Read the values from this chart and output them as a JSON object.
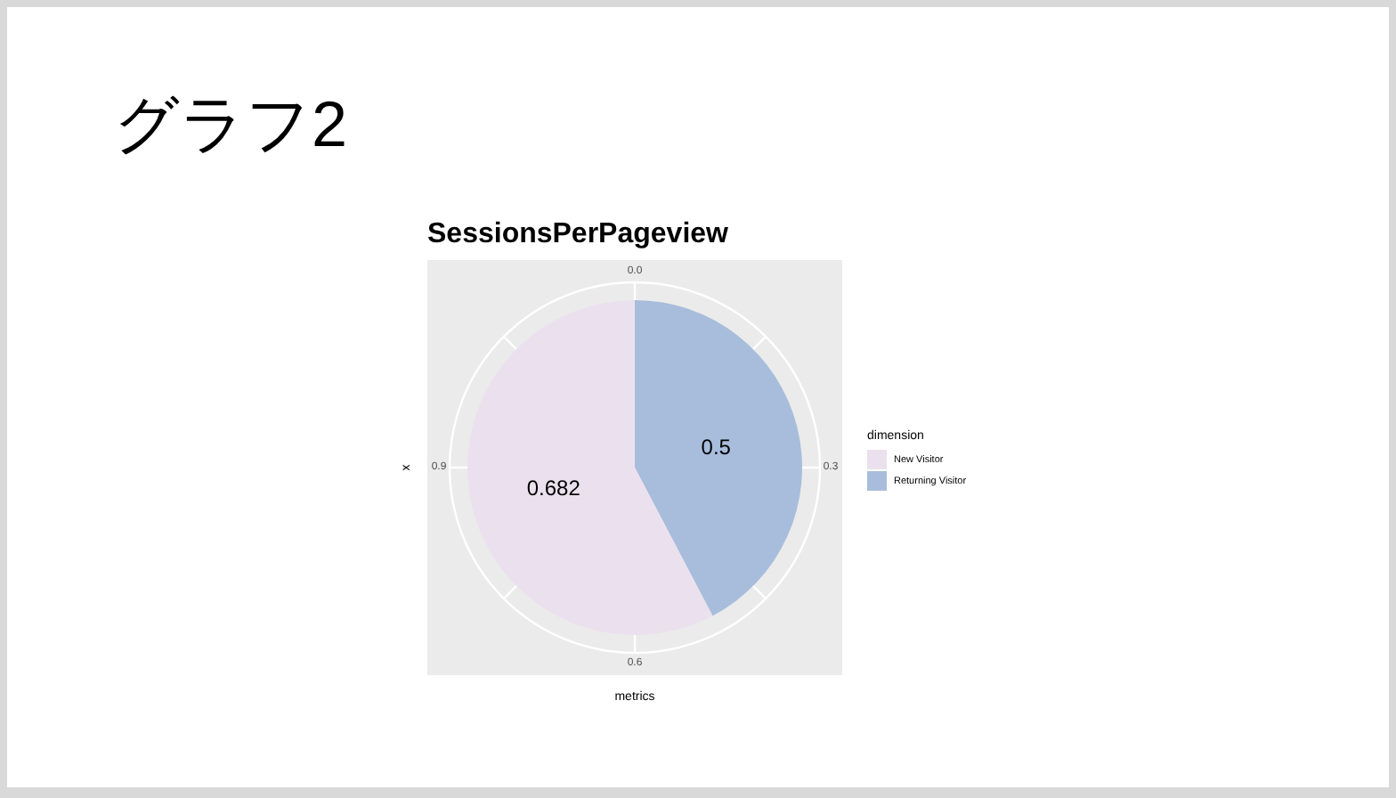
{
  "chart_data": {
    "type": "pie",
    "title": "グラフ2",
    "subtitle": "SessionsPerPageview",
    "xlabel": "metrics",
    "ylabel": "x",
    "legend_title": "dimension",
    "legend": "right",
    "data_labels": true,
    "categories": [
      "New Visitor",
      "Returning Visitor"
    ],
    "values": [
      0.682,
      0.5
    ],
    "colors": [
      "#ebe1ee",
      "#a8bddc"
    ],
    "annotations": [
      "0.0",
      "0.3",
      "0.6",
      "0.9"
    ]
  }
}
